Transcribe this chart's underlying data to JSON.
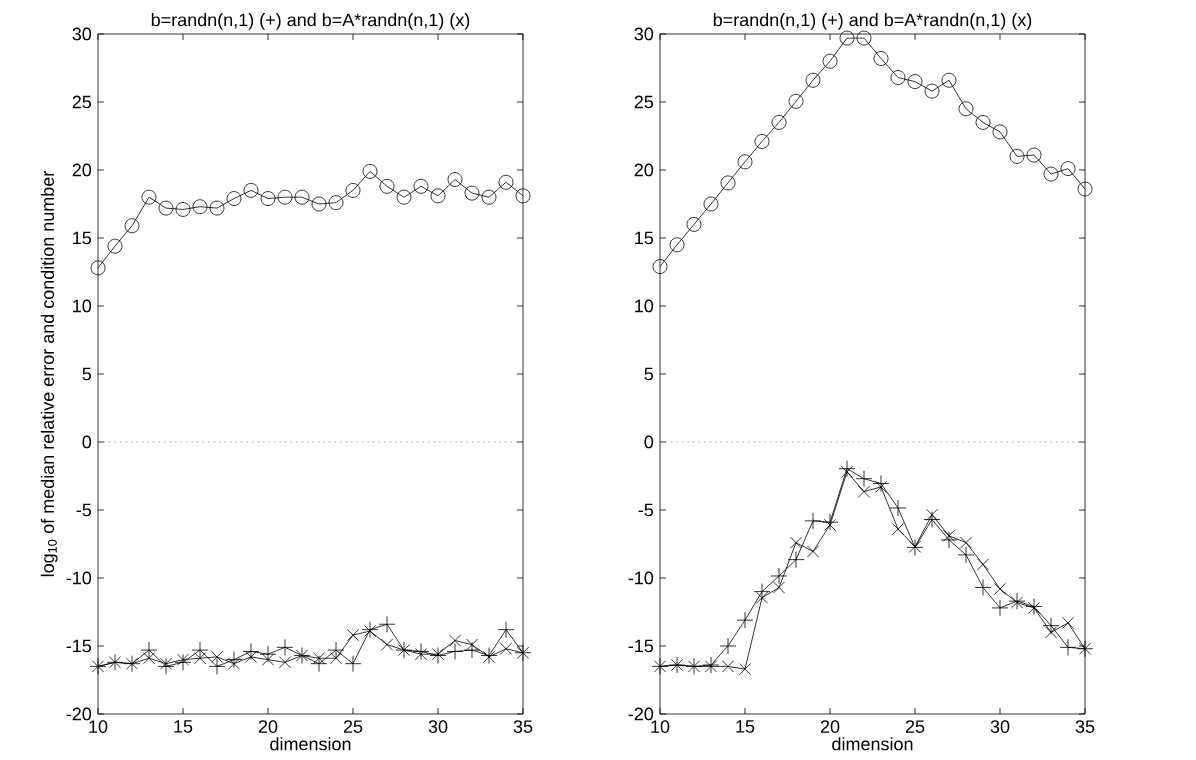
{
  "chart_data": [
    {
      "type": "line",
      "title": "b=randn(n,1) (+) and b=A*randn(n,1) (x)",
      "xlabel": "dimension",
      "ylabel": "log$_{10}$ of median relative error and condition number",
      "x": [
        10,
        11,
        12,
        13,
        14,
        15,
        16,
        17,
        18,
        19,
        20,
        21,
        22,
        23,
        24,
        25,
        26,
        27,
        28,
        29,
        30,
        31,
        32,
        33,
        34,
        35
      ],
      "series": [
        {
          "color": "#000000",
          "marker": "circle",
          "values": [
            12.8,
            14.4,
            15.9,
            18.0,
            17.2,
            17.1,
            17.3,
            17.2,
            17.9,
            18.5,
            17.9,
            18.0,
            18.0,
            17.5,
            17.6,
            18.5,
            19.9,
            18.8,
            18.0,
            18.8,
            18.1,
            19.3,
            18.3,
            18.0,
            19.1,
            18.1
          ]
        },
        {
          "color": "#000000",
          "marker": "plus",
          "values": [
            -16.5,
            -16.2,
            -16.3,
            -15.3,
            -16.5,
            -16.2,
            -15.3,
            -16.5,
            -16.0,
            -15.4,
            -15.6,
            -15.1,
            -15.7,
            -16.3,
            -15.3,
            -16.3,
            -13.8,
            -13.4,
            -15.3,
            -15.4,
            -15.7,
            -15.4,
            -15.3,
            -15.7,
            -13.8,
            -15.5
          ]
        },
        {
          "color": "#000000",
          "marker": "cross",
          "values": [
            -16.5,
            -16.2,
            -16.3,
            -15.9,
            -16.3,
            -16.0,
            -15.9,
            -15.8,
            -16.3,
            -15.8,
            -16.0,
            -16.2,
            -15.7,
            -15.9,
            -15.9,
            -14.2,
            -13.9,
            -14.9,
            -15.3,
            -15.6,
            -15.6,
            -14.6,
            -14.9,
            -15.8,
            -15.2,
            -15.5
          ]
        }
      ],
      "xlim": [
        10,
        35
      ],
      "ylim": [
        -20,
        30
      ],
      "xticks": [
        10,
        15,
        20,
        25,
        30,
        35
      ],
      "yticks": [
        -20,
        -15,
        -10,
        -5,
        0,
        5,
        10,
        15,
        20,
        25,
        30
      ],
      "ref_lines": [
        {
          "axis": "y",
          "value": 0,
          "color": "#808080",
          "line_style": "dotted"
        }
      ]
    },
    {
      "type": "line",
      "title": "b=randn(n,1) (+) and b=A*randn(n,1) (x)",
      "xlabel": "dimension",
      "x": [
        10,
        11,
        12,
        13,
        14,
        15,
        16,
        17,
        18,
        19,
        20,
        21,
        22,
        23,
        24,
        25,
        26,
        27,
        28,
        29,
        30,
        31,
        32,
        33,
        34,
        35
      ],
      "series": [
        {
          "color": "#000000",
          "marker": "circle",
          "values": [
            12.9,
            14.5,
            16.0,
            17.5,
            19.05,
            20.6,
            22.1,
            23.5,
            25.05,
            26.6,
            28.0,
            29.7,
            29.7,
            28.2,
            26.8,
            26.5,
            25.8,
            26.6,
            24.5,
            23.5,
            22.8,
            21.0,
            21.1,
            19.7,
            20.1,
            18.6
          ]
        },
        {
          "color": "#000000",
          "marker": "plus",
          "values": [
            -16.5,
            -16.4,
            -16.5,
            -16.4,
            -15.0,
            -13.1,
            -11.0,
            -9.85,
            -8.65,
            -5.8,
            -5.9,
            -1.96,
            -2.7,
            -3.05,
            -4.85,
            -7.75,
            -5.7,
            -7.2,
            -8.3,
            -10.7,
            -12.2,
            -11.7,
            -12.1,
            -13.5,
            -15.1,
            -15.2
          ]
        },
        {
          "color": "#000000",
          "marker": "cross",
          "values": [
            -16.5,
            -16.4,
            -16.5,
            -16.5,
            -16.5,
            -16.7,
            -11.45,
            -10.7,
            -7.4,
            -8.05,
            -6.1,
            -2.2,
            -3.65,
            -3.3,
            -6.4,
            -7.7,
            -5.35,
            -6.9,
            -7.4,
            -9.0,
            -10.8,
            -11.8,
            -12.2,
            -14.0,
            -13.3,
            -15.2
          ]
        }
      ],
      "xlim": [
        10,
        35
      ],
      "ylim": [
        -20,
        30
      ],
      "xticks": [
        10,
        15,
        20,
        25,
        30,
        35
      ],
      "yticks": [
        -20,
        -15,
        -10,
        -5,
        0,
        5,
        10,
        15,
        20,
        25,
        30
      ],
      "ref_lines": [
        {
          "axis": "y",
          "value": 0,
          "color": "#808080",
          "line_style": "dotted"
        }
      ]
    }
  ]
}
